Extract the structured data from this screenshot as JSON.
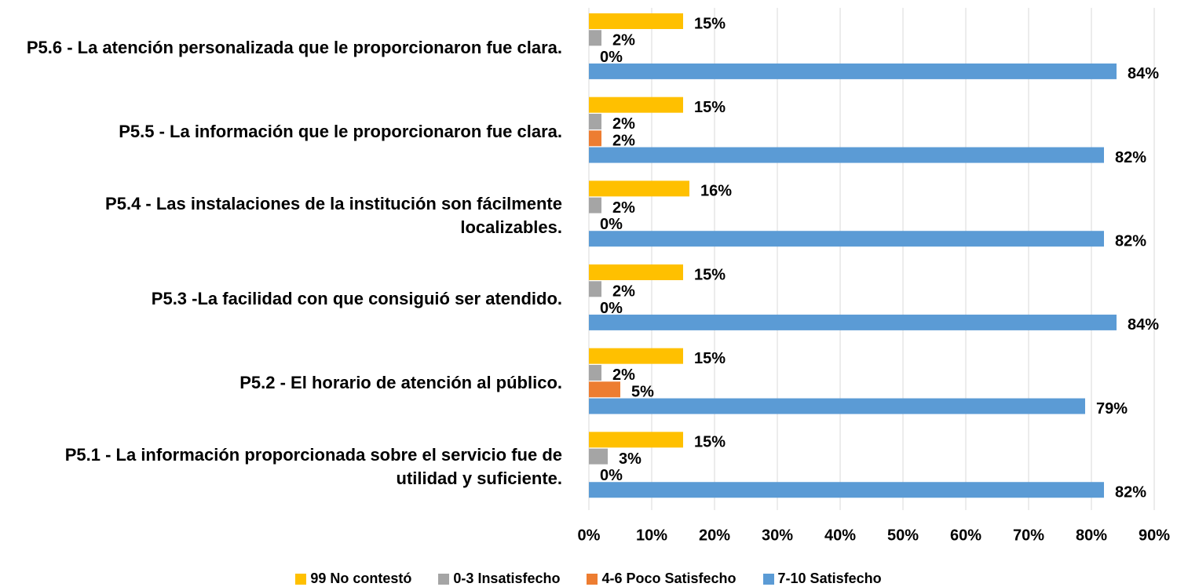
{
  "chart_data": {
    "type": "bar",
    "orientation": "horizontal",
    "categories": [
      "P5.6 - La atención personalizada que le proporcionaron fue clara.",
      "P5.5 - La información que le proporcionaron fue clara.",
      "P5.4 - Las instalaciones de la institución son fácilmente localizables.",
      "P5.3 -La facilidad con que consiguió ser atendido.",
      "P5.2 - El horario de atención al público.",
      "P5.1 - La información proporcionada sobre el servicio fue de utilidad y suficiente."
    ],
    "series": [
      {
        "name": "99 No contestó",
        "color": "#FFC000",
        "values": [
          15,
          15,
          16,
          15,
          15,
          15
        ],
        "value_labels": [
          "15%",
          "15%",
          "16%",
          "15%",
          "15%",
          "15%"
        ]
      },
      {
        "name": "0-3 Insatisfecho",
        "color": "#A5A5A5",
        "values": [
          2,
          2,
          2,
          2,
          2,
          3
        ],
        "value_labels": [
          "2%",
          "2%",
          "2%",
          "2%",
          "2%",
          "3%"
        ]
      },
      {
        "name": "4-6 Poco Satisfecho",
        "color": "#ED7D31",
        "values": [
          0,
          2,
          0,
          0,
          5,
          0
        ],
        "value_labels": [
          "0%",
          "2%",
          "0%",
          "0%",
          "5%",
          "0%"
        ]
      },
      {
        "name": "7-10 Satisfecho",
        "color": "#5B9BD5",
        "values": [
          84,
          82,
          82,
          84,
          79,
          82
        ],
        "value_labels": [
          "84%",
          "82%",
          "82%",
          "84%",
          "79%",
          "82%"
        ]
      }
    ],
    "xlim": [
      0,
      90
    ],
    "xticks": [
      {
        "value": 0,
        "label": "0%"
      },
      {
        "value": 10,
        "label": "10%"
      },
      {
        "value": 20,
        "label": "20%"
      },
      {
        "value": 30,
        "label": "30%"
      },
      {
        "value": 40,
        "label": "40%"
      },
      {
        "value": 50,
        "label": "50%"
      },
      {
        "value": 60,
        "label": "60%"
      },
      {
        "value": 70,
        "label": "70%"
      },
      {
        "value": 80,
        "label": "80%"
      },
      {
        "value": 90,
        "label": "90%"
      }
    ],
    "grid": true,
    "legend": "bottom"
  }
}
